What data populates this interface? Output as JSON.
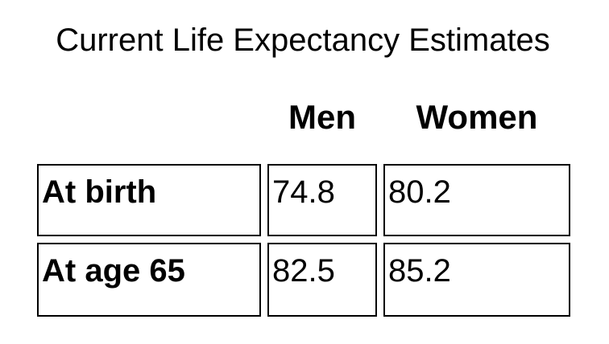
{
  "title": "Current Life Expectancy Estimates",
  "table": {
    "columns": [
      "Men",
      "Women"
    ],
    "rows": [
      {
        "label": "At birth",
        "values": [
          "74.8",
          "80.2"
        ]
      },
      {
        "label": "At age 65",
        "values": [
          "82.5",
          "85.2"
        ]
      }
    ]
  }
}
